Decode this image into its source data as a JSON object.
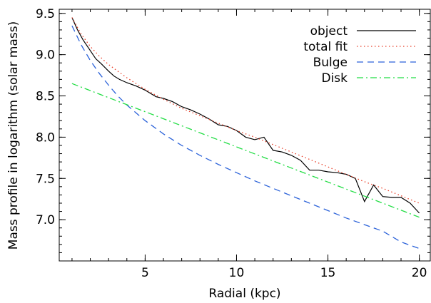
{
  "chart_data": {
    "type": "line",
    "title": "",
    "xlabel": "Radial (kpc)",
    "ylabel": "Mass profile in logarithm (solar mass)",
    "xlim": [
      0.3,
      20.6
    ],
    "ylim": [
      6.5,
      9.55
    ],
    "x_ticks": [
      5,
      10,
      15,
      20
    ],
    "x_tick_labels": [
      "5",
      "10",
      "15",
      "20"
    ],
    "y_ticks": [
      7.0,
      7.5,
      8.0,
      8.5,
      9.0,
      9.5
    ],
    "y_tick_labels": [
      "7.0",
      "7.5",
      "8.0",
      "8.5",
      "9.0",
      "9.5"
    ],
    "grid": false,
    "legend_position": "top-right",
    "series": [
      {
        "name": "object",
        "color": "#000000",
        "style": "solid",
        "x": [
          1.0,
          1.3,
          1.6,
          2.0,
          2.3,
          2.6,
          3.0,
          3.3,
          3.6,
          4.0,
          4.5,
          5.0,
          5.3,
          5.6,
          6.0,
          6.5,
          7.0,
          7.5,
          8.0,
          8.5,
          9.0,
          9.5,
          10.0,
          10.5,
          11.0,
          11.5,
          12.0,
          12.5,
          13.0,
          13.5,
          14.0,
          14.5,
          15.0,
          15.5,
          16.0,
          16.5,
          17.0,
          17.5,
          18.0,
          18.5,
          19.0,
          19.5,
          20.0
        ],
        "values": [
          9.45,
          9.3,
          9.18,
          9.05,
          8.95,
          8.89,
          8.8,
          8.74,
          8.7,
          8.66,
          8.62,
          8.57,
          8.53,
          8.49,
          8.47,
          8.43,
          8.37,
          8.33,
          8.28,
          8.22,
          8.15,
          8.13,
          8.08,
          8.0,
          7.97,
          8.0,
          7.84,
          7.82,
          7.78,
          7.72,
          7.6,
          7.6,
          7.58,
          7.57,
          7.55,
          7.5,
          7.22,
          7.42,
          7.28,
          7.27,
          7.27,
          7.2,
          7.08
        ]
      },
      {
        "name": "total fit",
        "color": "#e8402a",
        "style": "dotted",
        "x": [
          1.0,
          1.5,
          2.0,
          2.5,
          3.0,
          4.0,
          5.0,
          6.0,
          7.0,
          8.0,
          9.0,
          10.0,
          11.0,
          12.0,
          13.0,
          14.0,
          15.0,
          16.0,
          17.0,
          18.0,
          19.0,
          20.0
        ],
        "values": [
          9.45,
          9.25,
          9.1,
          8.98,
          8.88,
          8.72,
          8.58,
          8.46,
          8.35,
          8.26,
          8.17,
          8.08,
          8.0,
          7.91,
          7.82,
          7.73,
          7.64,
          7.55,
          7.46,
          7.38,
          7.29,
          7.2
        ]
      },
      {
        "name": "Bulge",
        "color": "#2b62d9",
        "style": "dashed",
        "x": [
          1.0,
          1.5,
          2.0,
          2.5,
          3.0,
          3.5,
          4.0,
          5.0,
          6.0,
          7.0,
          8.0,
          9.0,
          10.0,
          11.0,
          12.0,
          13.0,
          14.0,
          15.0,
          16.0,
          17.0,
          18.0,
          19.0,
          20.0
        ],
        "values": [
          9.35,
          9.12,
          8.93,
          8.77,
          8.63,
          8.5,
          8.39,
          8.2,
          8.04,
          7.9,
          7.78,
          7.67,
          7.57,
          7.47,
          7.38,
          7.29,
          7.2,
          7.11,
          7.02,
          6.94,
          6.86,
          6.73,
          6.65
        ]
      },
      {
        "name": "Disk",
        "color": "#22dd44",
        "style": "dashdot",
        "x": [
          1.0,
          20.0
        ],
        "values": [
          8.65,
          7.03
        ]
      }
    ]
  }
}
